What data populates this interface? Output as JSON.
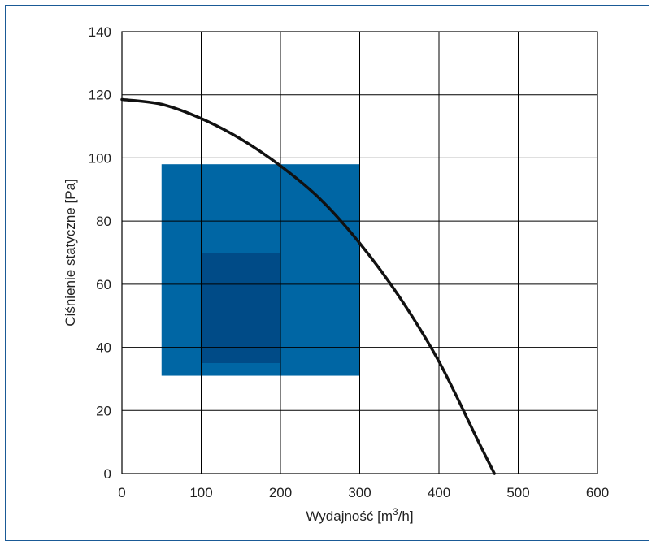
{
  "chart_data": {
    "type": "line",
    "title": "",
    "xlabel_parts": {
      "pre": "Wydajność [m",
      "sup": "3",
      "post": "/h]"
    },
    "ylabel": "Ciśnienie statyczne [Pa]",
    "xlim": [
      0,
      600
    ],
    "ylim": [
      0,
      140
    ],
    "xticks": [
      0,
      100,
      200,
      300,
      400,
      500,
      600
    ],
    "yticks": [
      0,
      20,
      40,
      60,
      80,
      100,
      120,
      140
    ],
    "grid": true,
    "legend": "none",
    "regions": [
      {
        "x": [
          50,
          300
        ],
        "y": [
          31,
          98
        ],
        "color": "#0066a4"
      },
      {
        "x": [
          100,
          200
        ],
        "y": [
          35,
          70
        ],
        "color": "#004b87"
      }
    ],
    "series": [
      {
        "color": "#111111",
        "points": [
          [
            0,
            118.5
          ],
          [
            50,
            117
          ],
          [
            100,
            112.5
          ],
          [
            150,
            106
          ],
          [
            200,
            97.5
          ],
          [
            250,
            87
          ],
          [
            300,
            73
          ],
          [
            350,
            56
          ],
          [
            400,
            35.5
          ],
          [
            450,
            10
          ],
          [
            470,
            0
          ]
        ]
      }
    ]
  }
}
